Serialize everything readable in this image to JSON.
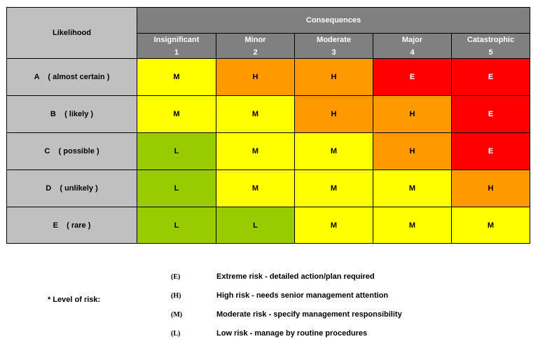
{
  "table": {
    "likelihood_header": "Likelihood",
    "consequences_header": "Consequences",
    "columns": [
      {
        "name": "Insignificant",
        "number": 1
      },
      {
        "name": "Minor",
        "number": 2
      },
      {
        "name": "Moderate",
        "number": 3
      },
      {
        "name": "Major",
        "number": 4
      },
      {
        "name": "Catastrophic",
        "number": 5
      }
    ],
    "rows": [
      {
        "label": "A    ( almost certain )",
        "cells": [
          "M",
          "H",
          "H",
          "E",
          "E"
        ]
      },
      {
        "label": "B    ( likely )",
        "cells": [
          "M",
          "M",
          "H",
          "H",
          "E"
        ]
      },
      {
        "label": "C    ( possible )",
        "cells": [
          "L",
          "M",
          "M",
          "H",
          "E"
        ]
      },
      {
        "label": "D    ( unlikely )",
        "cells": [
          "L",
          "M",
          "M",
          "M",
          "H"
        ]
      },
      {
        "label": "E    ( rare )",
        "cells": [
          "L",
          "L",
          "M",
          "M",
          "M"
        ]
      }
    ]
  },
  "colors": {
    "E": "#ff0000",
    "H": "#ff9900",
    "M": "#ffff00",
    "L": "#99cc00"
  },
  "legend": {
    "title": "* Level of risk:",
    "items": [
      {
        "code": "(E)",
        "text": "Extreme risk - detailed action/plan required"
      },
      {
        "code": "(H)",
        "text": "High risk - needs senior management attention"
      },
      {
        "code": "(M)",
        "text": "Moderate risk - specify management responsibility"
      },
      {
        "code": "(L)",
        "text": "Low risk - manage by routine procedures"
      }
    ]
  }
}
